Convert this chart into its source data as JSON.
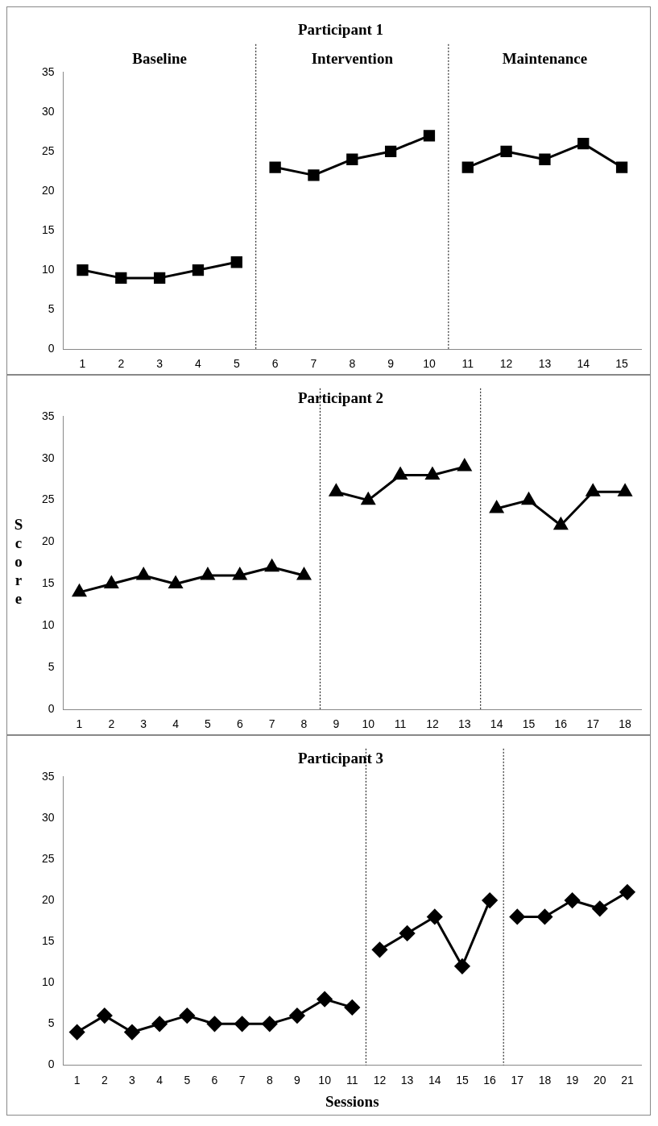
{
  "chart_data": [
    {
      "type": "line",
      "title": "Participant 1",
      "marker": "square",
      "xlim": [
        0.5,
        15.5
      ],
      "xticks": [
        1,
        2,
        3,
        4,
        5,
        6,
        7,
        8,
        9,
        10,
        11,
        12,
        13,
        14,
        15
      ],
      "ylim": [
        0,
        35
      ],
      "yticks": [
        0,
        5,
        10,
        15,
        20,
        25,
        30,
        35
      ],
      "annotations": [
        "Baseline",
        "Intervention",
        "Maintenance"
      ],
      "ref_lines": [
        {
          "axis": "x",
          "value": 5.5,
          "color": "#000000",
          "line_style": "dotted"
        },
        {
          "axis": "x",
          "value": 10.5,
          "color": "#000000",
          "line_style": "dotted"
        }
      ],
      "series": [
        {
          "color": "#000000",
          "x": [
            1,
            2,
            3,
            4,
            5
          ],
          "values": [
            10,
            9,
            9,
            10,
            11
          ]
        },
        {
          "color": "#000000",
          "x": [
            6,
            7,
            8,
            9,
            10
          ],
          "values": [
            23,
            22,
            24,
            25,
            27
          ]
        },
        {
          "color": "#000000",
          "x": [
            11,
            12,
            13,
            14,
            15
          ],
          "values": [
            23,
            25,
            24,
            26,
            23
          ]
        }
      ]
    },
    {
      "type": "line",
      "title": "Participant 2",
      "ylabel": "Score",
      "marker": "triangle",
      "xlim": [
        0.5,
        18.5
      ],
      "xticks": [
        1,
        2,
        3,
        4,
        5,
        6,
        7,
        8,
        9,
        10,
        11,
        12,
        13,
        14,
        15,
        16,
        17,
        18
      ],
      "ylim": [
        0,
        35
      ],
      "yticks": [
        0,
        5,
        10,
        15,
        20,
        25,
        30,
        35
      ],
      "ref_lines": [
        {
          "axis": "x",
          "value": 8.5,
          "color": "#000000",
          "line_style": "dotted"
        },
        {
          "axis": "x",
          "value": 13.5,
          "color": "#000000",
          "line_style": "dotted"
        }
      ],
      "series": [
        {
          "color": "#000000",
          "x": [
            1,
            2,
            3,
            4,
            5,
            6,
            7,
            8
          ],
          "values": [
            14,
            15,
            16,
            15,
            16,
            16,
            17,
            16
          ]
        },
        {
          "color": "#000000",
          "x": [
            9,
            10,
            11,
            12,
            13
          ],
          "values": [
            26,
            25,
            28,
            28,
            29
          ]
        },
        {
          "color": "#000000",
          "x": [
            14,
            15,
            16,
            17,
            18
          ],
          "values": [
            24,
            25,
            22,
            26,
            26
          ]
        }
      ]
    },
    {
      "type": "line",
      "title": "Participant 3",
      "xlabel": "Sessions",
      "marker": "diamond",
      "xlim": [
        0.5,
        21.5
      ],
      "xticks": [
        1,
        2,
        3,
        4,
        5,
        6,
        7,
        8,
        9,
        10,
        11,
        12,
        13,
        14,
        15,
        16,
        17,
        18,
        19,
        20,
        21
      ],
      "ylim": [
        0,
        35
      ],
      "yticks": [
        0,
        5,
        10,
        15,
        20,
        25,
        30,
        35
      ],
      "ref_lines": [
        {
          "axis": "x",
          "value": 11.5,
          "color": "#000000",
          "line_style": "dotted"
        },
        {
          "axis": "x",
          "value": 16.5,
          "color": "#000000",
          "line_style": "dotted"
        }
      ],
      "series": [
        {
          "color": "#000000",
          "x": [
            1,
            2,
            3,
            4,
            5,
            6,
            7,
            8,
            9,
            10,
            11
          ],
          "values": [
            4,
            6,
            4,
            5,
            6,
            5,
            5,
            5,
            6,
            8,
            7
          ]
        },
        {
          "color": "#000000",
          "x": [
            12,
            13,
            14,
            15,
            16
          ],
          "values": [
            14,
            16,
            18,
            12,
            20
          ]
        },
        {
          "color": "#000000",
          "x": [
            17,
            18,
            19,
            20,
            21
          ],
          "values": [
            18,
            18,
            20,
            19,
            21
          ]
        }
      ]
    }
  ]
}
